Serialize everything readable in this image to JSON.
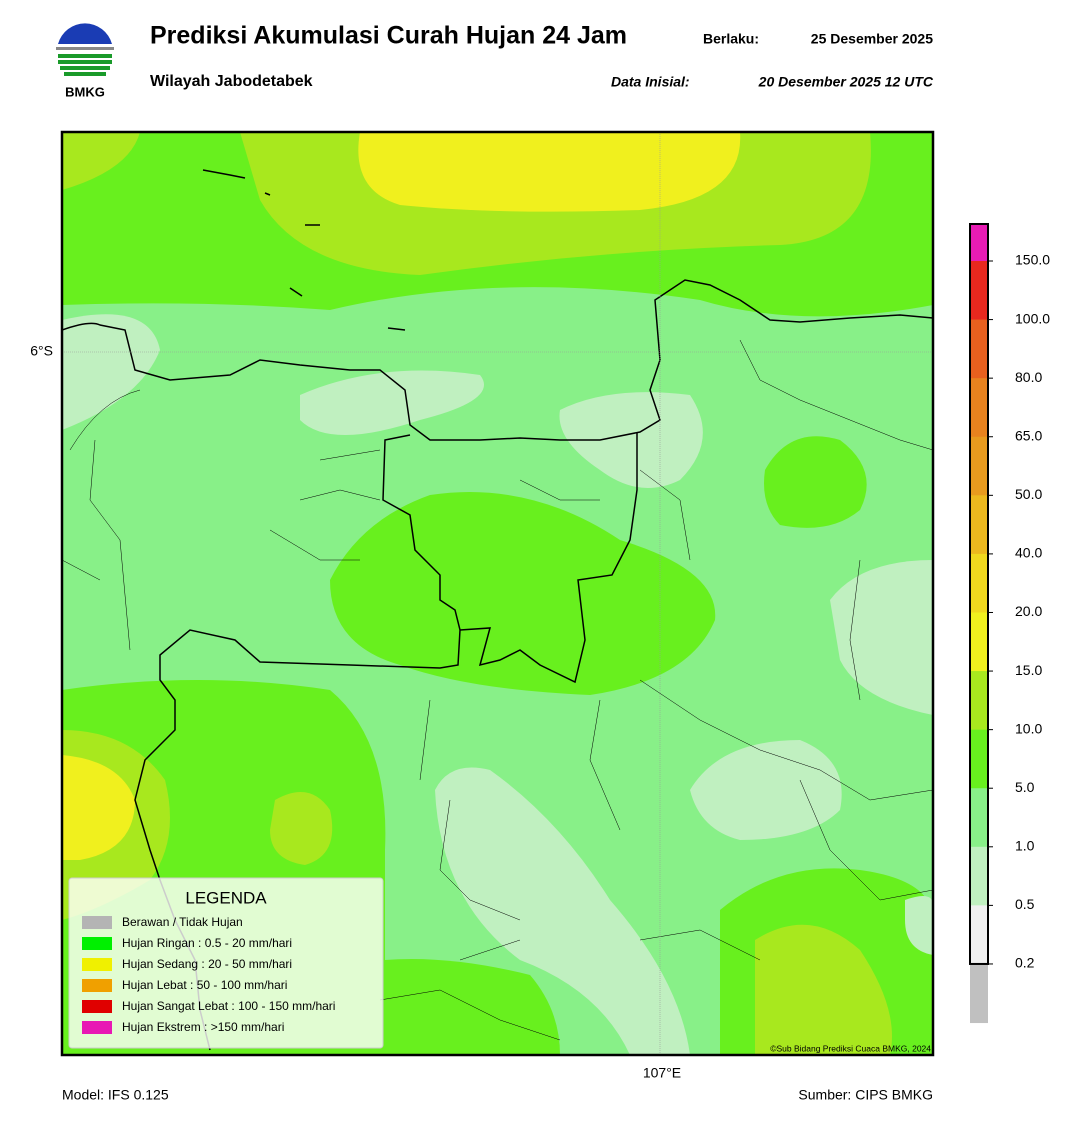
{
  "header": {
    "logo_text": "BMKG",
    "title": "Prediksi Akumulasi Curah Hujan 24 Jam",
    "valid_label": "Berlaku:",
    "valid_date": "25 Desember 2025",
    "subtitle": "Wilayah Jabodetabek",
    "init_label": "Data Inisial:",
    "init_date": "20 Desember 2025 12 UTC"
  },
  "map": {
    "lat_label": "6°S",
    "lon_label": "107°E",
    "credit": "©Sub Bidang Prediksi Cuaca BMKG, 2024"
  },
  "legend": {
    "title": "LEGENDA",
    "items": [
      {
        "label": "Berawan / Tidak Hujan",
        "color": "#b4b4b4"
      },
      {
        "label": "Hujan Ringan : 0.5 - 20 mm/hari",
        "color": "#00f000"
      },
      {
        "label": "Hujan Sedang : 20 - 50 mm/hari",
        "color": "#f0f000"
      },
      {
        "label": "Hujan Lebat : 50 - 100 mm/hari",
        "color": "#f0a000"
      },
      {
        "label": "Hujan Sangat Lebat : 100 - 150 mm/hari",
        "color": "#e00000"
      },
      {
        "label": "Hujan Ekstrem : >150 mm/hari",
        "color": "#e818b4"
      }
    ]
  },
  "colorbar": {
    "ticks": [
      "150.0",
      "100.0",
      "80.0",
      "65.0",
      "50.0",
      "40.0",
      "20.0",
      "15.0",
      "10.0",
      "5.0",
      "1.0",
      "0.5",
      "0.2"
    ],
    "colors": [
      "#e81cb4",
      "#e8281e",
      "#e8601e",
      "#e8821e",
      "#e89a1e",
      "#ecb81e",
      "#f0d81e",
      "#f0f01e",
      "#a8e81e",
      "#68f01e",
      "#88f088",
      "#c0f0c0",
      "#f0f0f0",
      "#c0c0c0"
    ]
  },
  "footer": {
    "model": "Model: IFS 0.125",
    "source": "Sumber: CIPS BMKG"
  }
}
